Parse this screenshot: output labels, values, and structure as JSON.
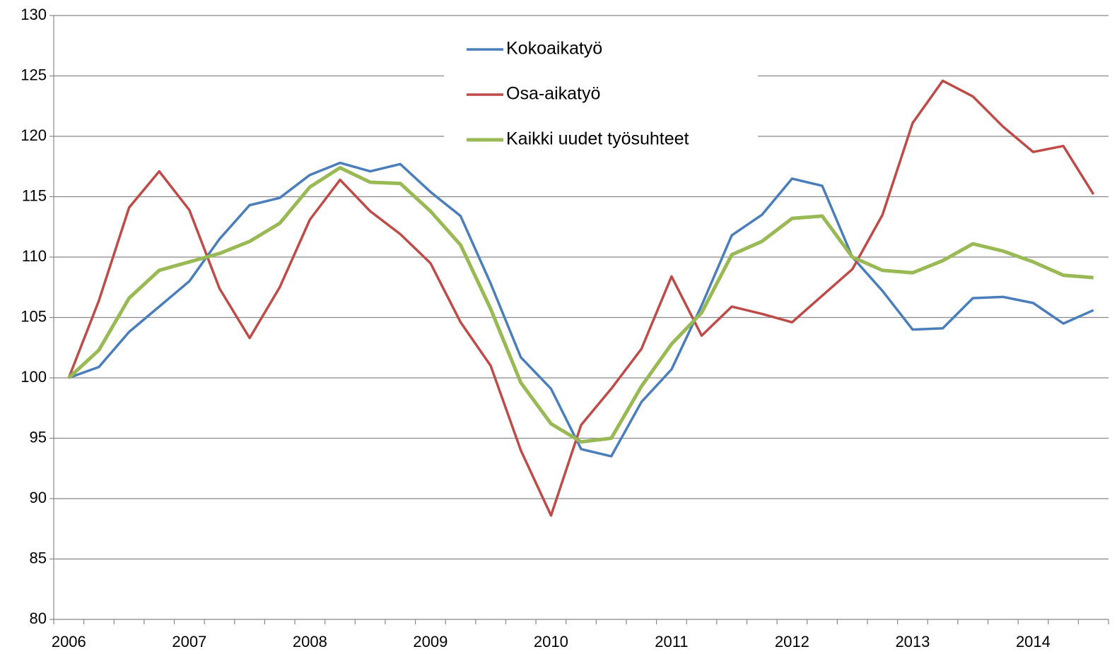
{
  "chart_data": {
    "type": "line",
    "categories": [
      "2006",
      null,
      null,
      null,
      "2007",
      null,
      null,
      null,
      "2008",
      null,
      null,
      null,
      "2009",
      null,
      null,
      null,
      "2010",
      null,
      null,
      null,
      "2011",
      null,
      null,
      null,
      "2012",
      null,
      null,
      null,
      "2013",
      null,
      null,
      null,
      "2014",
      null,
      null
    ],
    "series": [
      {
        "name": "Kokoaikatyö",
        "color": "#4a7ebb",
        "values": [
          100,
          100.9,
          103.8,
          105.9,
          108,
          111.5,
          114.3,
          114.9,
          116.8,
          117.8,
          117.1,
          117.7,
          115.4,
          113.4,
          107.8,
          101.7,
          99.1,
          94.1,
          93.5,
          98,
          100.7,
          106,
          111.8,
          113.5,
          116.5,
          115.9,
          110,
          107.2,
          104,
          104.1,
          106.6,
          106.7,
          106.2,
          104.5,
          105.6
        ]
      },
      {
        "name": "Osa-aikatyö",
        "color": "#be4b48",
        "values": [
          100,
          106.4,
          114.1,
          117.1,
          113.9,
          107.4,
          103.3,
          107.5,
          113.1,
          116.4,
          113.8,
          111.9,
          109.5,
          104.6,
          101,
          94,
          88.6,
          96.1,
          99.1,
          102.4,
          108.4,
          103.5,
          105.9,
          105.3,
          104.6,
          106.8,
          109,
          113.5,
          121.1,
          124.6,
          123.3,
          120.8,
          118.7,
          119.2,
          115.2
        ]
      },
      {
        "name": "Kaikki uudet työsuhteet",
        "color": "#98b954",
        "values": [
          100,
          102.3,
          106.6,
          108.9,
          109.6,
          110.3,
          111.3,
          112.8,
          115.8,
          117.4,
          116.2,
          116.1,
          113.8,
          111,
          105.7,
          99.6,
          96.2,
          94.7,
          95,
          99.3,
          102.8,
          105.4,
          110.2,
          111.3,
          113.2,
          113.4,
          110,
          108.9,
          108.7,
          109.7,
          111.1,
          110.5,
          109.6,
          108.5,
          108.3
        ]
      }
    ],
    "ylim": [
      80,
      130
    ],
    "yticks": [
      80,
      85,
      90,
      95,
      100,
      105,
      110,
      115,
      120,
      125,
      130
    ],
    "grid": true,
    "legend": "upper center"
  }
}
